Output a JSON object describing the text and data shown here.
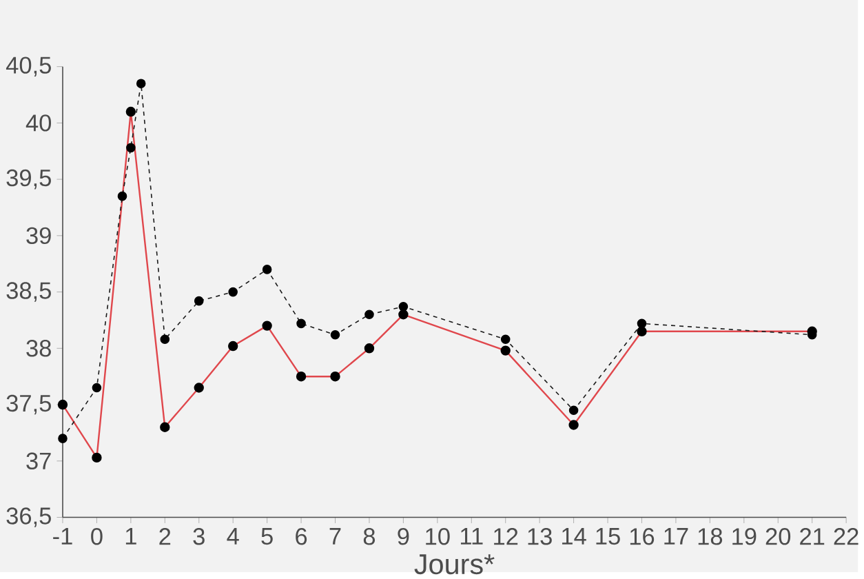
{
  "chart_data": {
    "type": "line",
    "xlabel": "Jours*",
    "xlim": [
      -1,
      22
    ],
    "ylim": [
      36.5,
      40.5
    ],
    "xticks": [
      -1,
      0,
      1,
      2,
      3,
      4,
      5,
      6,
      7,
      8,
      9,
      10,
      11,
      12,
      13,
      14,
      15,
      16,
      17,
      18,
      19,
      20,
      21,
      22
    ],
    "yticks": [
      {
        "value": 36.5,
        "label": "36,5"
      },
      {
        "value": 37,
        "label": "37"
      },
      {
        "value": 37.5,
        "label": "37,5"
      },
      {
        "value": 38,
        "label": "38"
      },
      {
        "value": 38.5,
        "label": "38,5"
      },
      {
        "value": 39,
        "label": "39"
      },
      {
        "value": 39.5,
        "label": "39,5"
      },
      {
        "value": 40,
        "label": "40"
      },
      {
        "value": 40.5,
        "label": "40,5"
      }
    ],
    "grid": false,
    "marker": "circle",
    "series": [
      {
        "color": "#e0474c",
        "line_style": "solid",
        "x": [
          -1,
          0,
          1,
          2,
          3,
          4,
          5,
          6,
          7,
          8,
          9,
          12,
          14,
          16,
          21
        ],
        "values": [
          37.5,
          37.03,
          40.1,
          37.3,
          37.65,
          38.02,
          38.2,
          37.75,
          37.75,
          38.0,
          38.3,
          37.98,
          37.32,
          38.15,
          38.15
        ]
      },
      {
        "color": "#1a1a1a",
        "line_style": "dashed",
        "x": [
          -1,
          0,
          0.75,
          1,
          1.3,
          2,
          3,
          4,
          5,
          6,
          7,
          8,
          9,
          12,
          14,
          16,
          21
        ],
        "values": [
          37.2,
          37.65,
          39.35,
          39.78,
          40.35,
          38.08,
          38.42,
          38.5,
          38.7,
          38.22,
          38.12,
          38.3,
          38.37,
          38.08,
          37.45,
          38.22,
          38.12
        ]
      }
    ]
  }
}
